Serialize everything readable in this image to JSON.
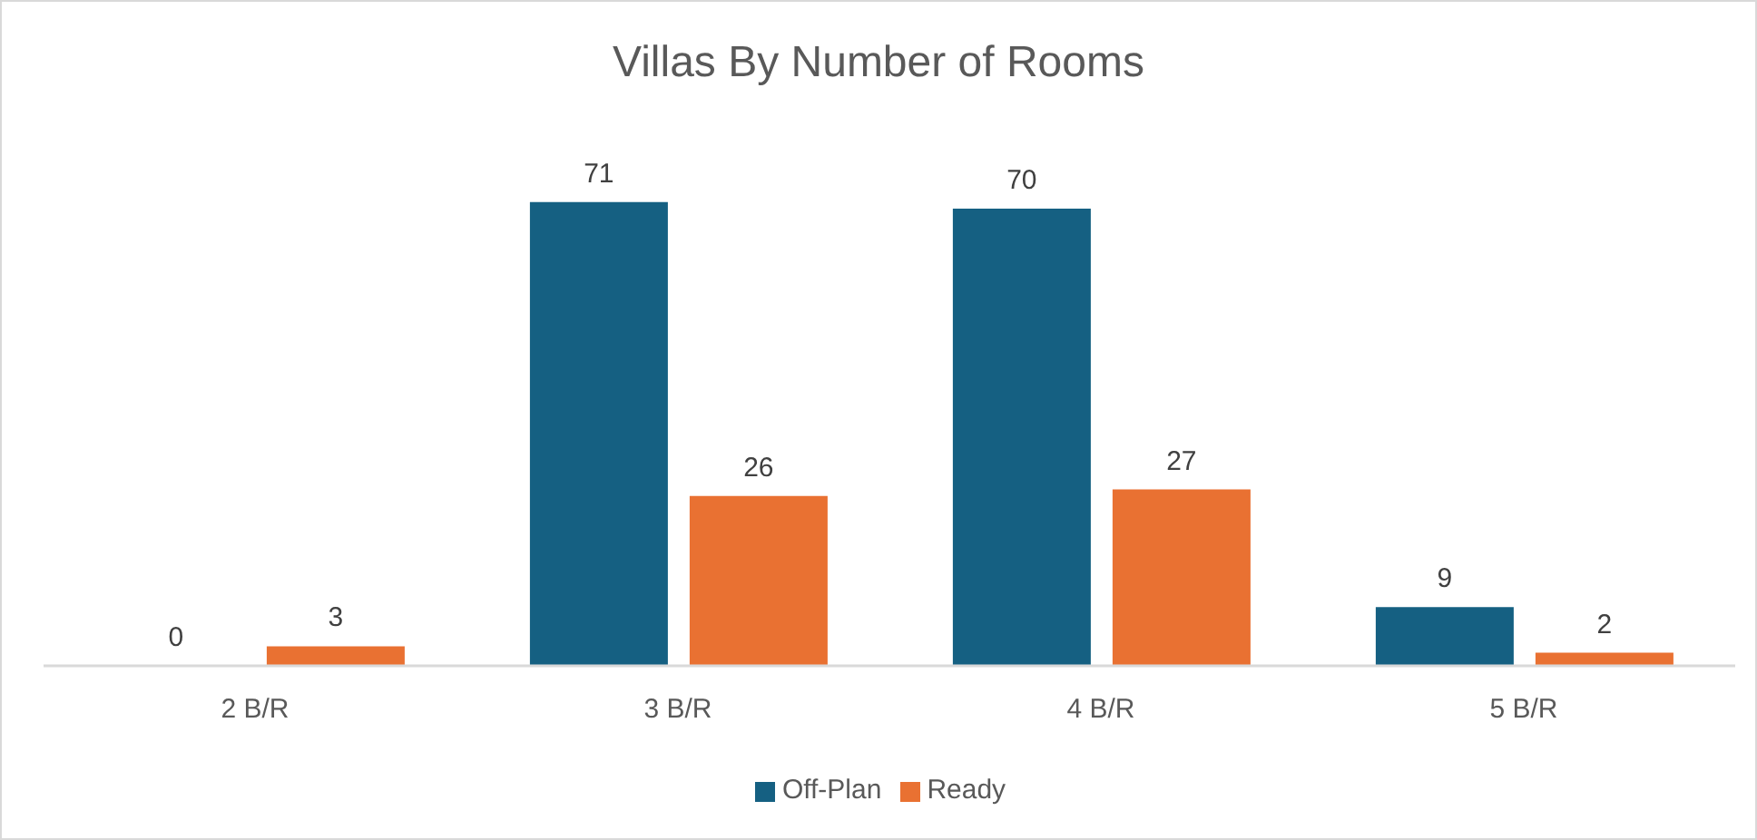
{
  "chart_data": {
    "type": "bar",
    "title": "Villas By Number of Rooms",
    "categories": [
      "2 B/R",
      "3 B/R",
      "4 B/R",
      "5 B/R"
    ],
    "series": [
      {
        "name": "Off-Plan",
        "color": "#156082",
        "values": [
          0,
          71,
          70,
          9
        ]
      },
      {
        "name": "Ready",
        "color": "#e97132",
        "values": [
          3,
          26,
          27,
          2
        ]
      }
    ],
    "data_labels": true,
    "legend": "bottom"
  }
}
